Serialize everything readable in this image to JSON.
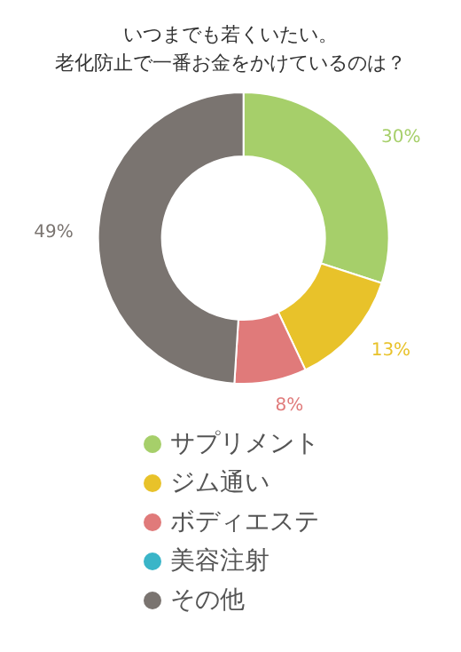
{
  "chart_data": {
    "type": "donut",
    "title": "いつまでも若くいたい。",
    "subtitle": "老化防止で一番お金をかけているのは？",
    "categories": [
      "サプリメント",
      "ジム通い",
      "ボディエステ",
      "美容注射",
      "その他"
    ],
    "values": [
      30,
      13,
      8,
      0,
      49
    ],
    "colors": [
      "#a6cf6a",
      "#e8c22a",
      "#e07a7a",
      "#3ab5c8",
      "#7a7470"
    ],
    "value_labels": [
      "30%",
      "13%",
      "8%",
      null,
      "49%"
    ],
    "legend": "bottom"
  }
}
